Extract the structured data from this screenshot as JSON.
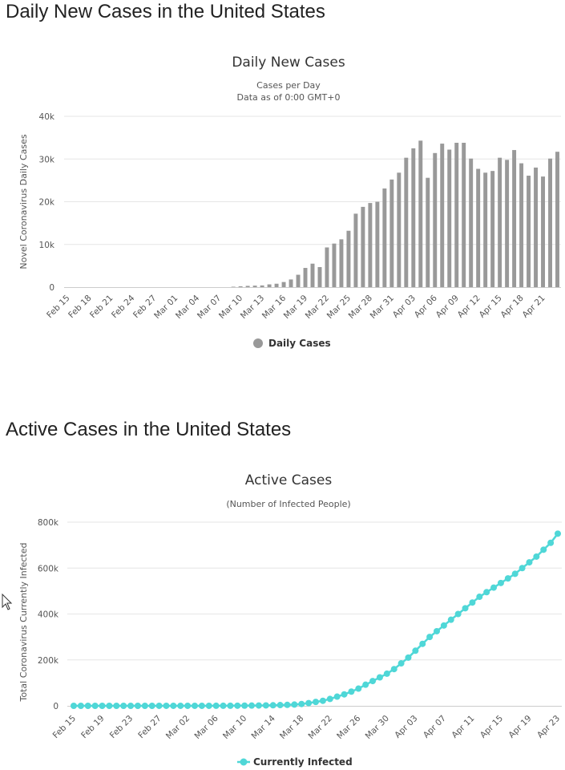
{
  "section1": {
    "heading": "Daily New Cases in the United States"
  },
  "section2": {
    "heading": "Active Cases in the United States"
  },
  "chart_data": [
    {
      "type": "bar",
      "title": "Daily New Cases",
      "subtitle_lines": [
        "Cases per Day",
        "Data as of 0:00 GMT+0"
      ],
      "ylabel": "Novel Coronavirus Daily Cases",
      "xlabel": "",
      "ylim": [
        0,
        40000
      ],
      "yticks": [
        0,
        10000,
        20000,
        30000,
        40000
      ],
      "ytick_labels": [
        "0",
        "10k",
        "20k",
        "30k",
        "40k"
      ],
      "grid": true,
      "color": "#999999",
      "legend_position": "bottom-center",
      "categories": [
        "Feb 15",
        "Feb 16",
        "Feb 17",
        "Feb 18",
        "Feb 19",
        "Feb 20",
        "Feb 21",
        "Feb 22",
        "Feb 23",
        "Feb 24",
        "Feb 25",
        "Feb 26",
        "Feb 27",
        "Feb 28",
        "Feb 29",
        "Mar 01",
        "Mar 02",
        "Mar 03",
        "Mar 04",
        "Mar 05",
        "Mar 06",
        "Mar 07",
        "Mar 08",
        "Mar 09",
        "Mar 10",
        "Mar 11",
        "Mar 12",
        "Mar 13",
        "Mar 14",
        "Mar 15",
        "Mar 16",
        "Mar 17",
        "Mar 18",
        "Mar 19",
        "Mar 20",
        "Mar 21",
        "Mar 22",
        "Mar 23",
        "Mar 24",
        "Mar 25",
        "Mar 26",
        "Mar 27",
        "Mar 28",
        "Mar 29",
        "Mar 30",
        "Mar 31",
        "Apr 01",
        "Apr 02",
        "Apr 03",
        "Apr 04",
        "Apr 05",
        "Apr 06",
        "Apr 07",
        "Apr 08",
        "Apr 09",
        "Apr 10",
        "Apr 11",
        "Apr 12",
        "Apr 13",
        "Apr 14",
        "Apr 15",
        "Apr 16",
        "Apr 17",
        "Apr 18",
        "Apr 19",
        "Apr 20",
        "Apr 21",
        "Apr 22",
        "Apr 23"
      ],
      "tick_labels": [
        "Feb 15",
        "Feb 18",
        "Feb 21",
        "Feb 24",
        "Feb 27",
        "Mar 01",
        "Mar 04",
        "Mar 07",
        "Mar 10",
        "Mar 13",
        "Mar 16",
        "Mar 19",
        "Mar 22",
        "Mar 25",
        "Mar 28",
        "Mar 31",
        "Apr 03",
        "Apr 06",
        "Apr 09",
        "Apr 12",
        "Apr 15",
        "Apr 18",
        "Apr 21"
      ],
      "series": [
        {
          "name": "Daily Cases",
          "values": [
            0,
            0,
            0,
            0,
            0,
            0,
            0,
            0,
            0,
            0,
            0,
            0,
            0,
            0,
            0,
            0,
            0,
            0,
            0,
            0,
            0,
            0,
            0,
            100,
            200,
            300,
            350,
            400,
            650,
            800,
            1200,
            1800,
            2900,
            4500,
            5500,
            4700,
            9300,
            10200,
            11200,
            13200,
            17200,
            18800,
            19700,
            20000,
            23100,
            25200,
            26800,
            30300,
            32500,
            34300,
            25600,
            31400,
            33600,
            32200,
            33800,
            33800,
            30100,
            27700,
            26800,
            27200,
            30300,
            29800,
            32100,
            29000,
            26100,
            28000,
            25900,
            30100,
            31700
          ]
        }
      ]
    },
    {
      "type": "line",
      "title": "Active Cases",
      "subtitle": "(Number of Infected People)",
      "ylabel": "Total Coronavirus Currently Infected",
      "xlabel": "",
      "ylim": [
        0,
        800000
      ],
      "yticks": [
        0,
        200000,
        400000,
        600000,
        800000
      ],
      "ytick_labels": [
        "0",
        "200k",
        "400k",
        "600k",
        "800k"
      ],
      "grid": true,
      "color": "#4FD7D7",
      "legend_position": "bottom-center",
      "x": [
        "Feb 15",
        "Feb 16",
        "Feb 17",
        "Feb 18",
        "Feb 19",
        "Feb 20",
        "Feb 21",
        "Feb 22",
        "Feb 23",
        "Feb 24",
        "Feb 25",
        "Feb 26",
        "Feb 27",
        "Feb 28",
        "Feb 29",
        "Mar 01",
        "Mar 02",
        "Mar 03",
        "Mar 04",
        "Mar 05",
        "Mar 06",
        "Mar 07",
        "Mar 08",
        "Mar 09",
        "Mar 10",
        "Mar 11",
        "Mar 12",
        "Mar 13",
        "Mar 14",
        "Mar 15",
        "Mar 16",
        "Mar 17",
        "Mar 18",
        "Mar 19",
        "Mar 20",
        "Mar 21",
        "Mar 22",
        "Mar 23",
        "Mar 24",
        "Mar 25",
        "Mar 26",
        "Mar 27",
        "Mar 28",
        "Mar 29",
        "Mar 30",
        "Mar 31",
        "Apr 01",
        "Apr 02",
        "Apr 03",
        "Apr 04",
        "Apr 05",
        "Apr 06",
        "Apr 07",
        "Apr 08",
        "Apr 09",
        "Apr 10",
        "Apr 11",
        "Apr 12",
        "Apr 13",
        "Apr 14",
        "Apr 15",
        "Apr 16",
        "Apr 17",
        "Apr 18",
        "Apr 19",
        "Apr 20",
        "Apr 21",
        "Apr 22",
        "Apr 23"
      ],
      "tick_labels": [
        "Feb 15",
        "Feb 19",
        "Feb 23",
        "Feb 27",
        "Mar 02",
        "Mar 06",
        "Mar 10",
        "Mar 14",
        "Mar 18",
        "Mar 22",
        "Mar 26",
        "Mar 30",
        "Apr 03",
        "Apr 07",
        "Apr 11",
        "Apr 15",
        "Apr 19",
        "Apr 23"
      ],
      "series": [
        {
          "name": "Currently Infected",
          "values": [
            10,
            10,
            10,
            10,
            10,
            10,
            10,
            15,
            20,
            30,
            40,
            50,
            60,
            70,
            70,
            80,
            90,
            110,
            140,
            180,
            250,
            320,
            450,
            650,
            900,
            1200,
            1500,
            1900,
            2500,
            3300,
            4300,
            5600,
            8000,
            12000,
            17000,
            22000,
            30000,
            40000,
            50000,
            62000,
            75000,
            92000,
            108000,
            124000,
            140000,
            160000,
            185000,
            210000,
            240000,
            270000,
            300000,
            325000,
            350000,
            375000,
            400000,
            425000,
            450000,
            475000,
            495000,
            515000,
            535000,
            555000,
            575000,
            600000,
            625000,
            650000,
            680000,
            710000,
            750000
          ]
        }
      ]
    }
  ]
}
